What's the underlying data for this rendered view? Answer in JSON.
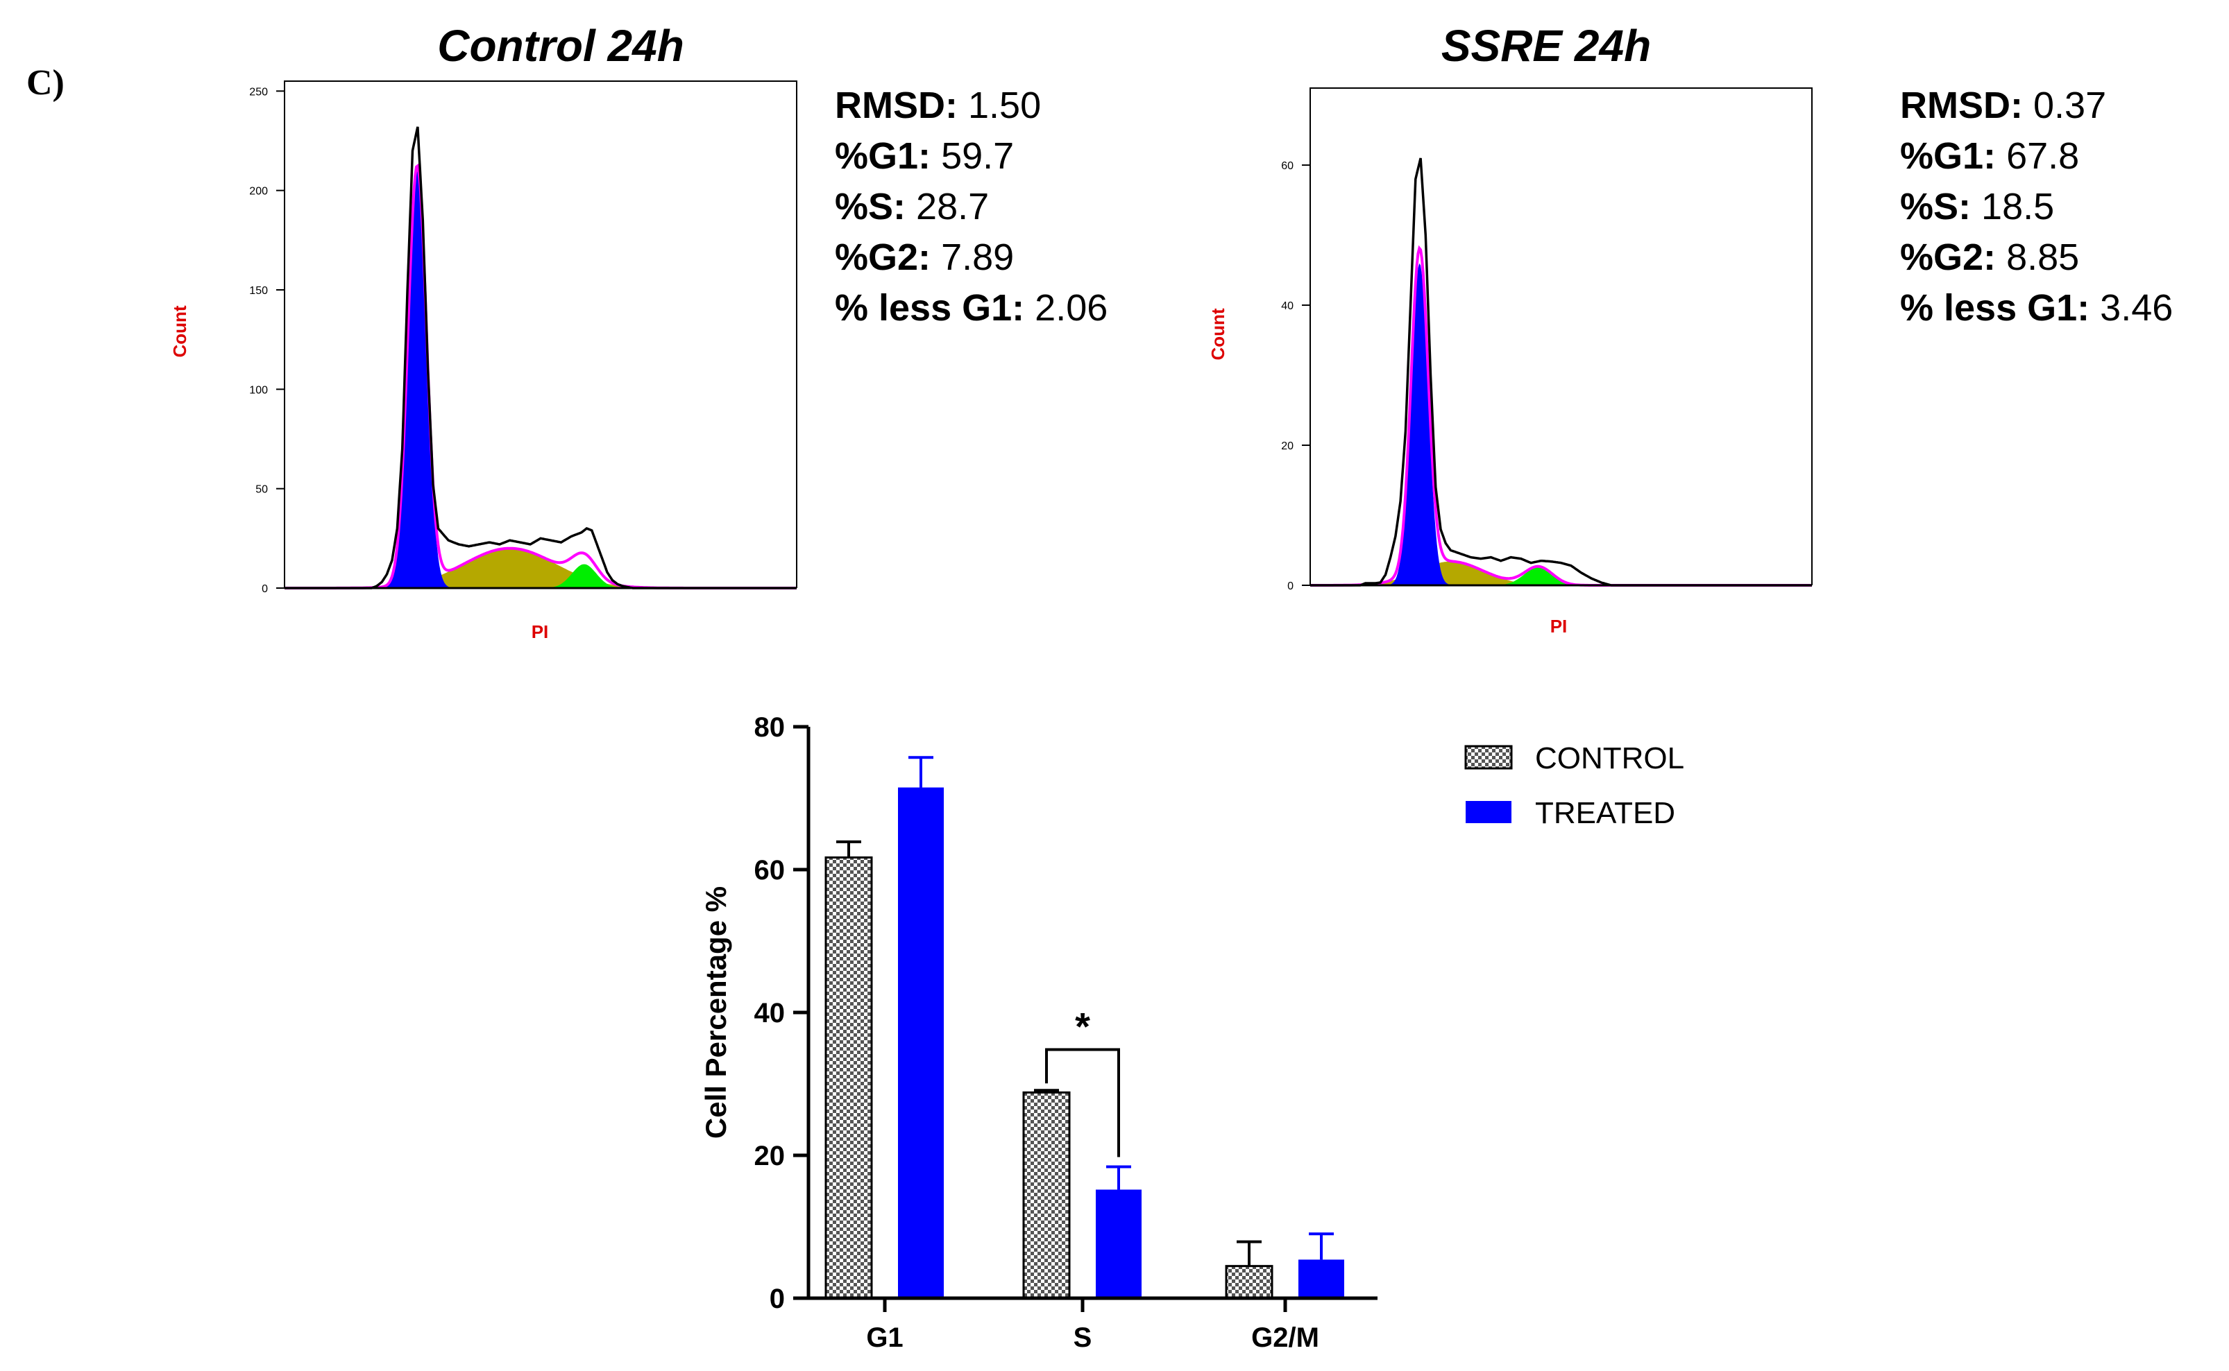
{
  "figure": {
    "panel_label": "C)"
  },
  "colors": {
    "g1_fill": "#0000ff",
    "s_fill": "#b5a800",
    "g2_fill": "#00ee00",
    "fit_line": "#ff00ff",
    "data_line": "#000000",
    "axis_label_red": "#dd0000",
    "treated": "#0000ff",
    "control_bar": "#8c8c8c"
  },
  "chart_data": [
    {
      "type": "area",
      "id": "hist_control",
      "title": "Control 24h",
      "xlabel": "PI",
      "ylabel": "Count",
      "ylim": [
        0,
        255
      ],
      "yticks": [
        "0",
        "50",
        "100",
        "150",
        "200",
        "250"
      ],
      "ytick_values": [
        0,
        50,
        100,
        150,
        200,
        250
      ],
      "xlim": [
        0,
        100
      ],
      "profile": {
        "x": [
          0,
          17,
          18,
          19,
          20,
          21,
          22,
          23,
          24,
          25,
          26,
          27,
          28,
          29,
          30,
          32,
          34,
          36,
          38,
          40,
          42,
          44,
          46,
          48,
          50,
          52,
          54,
          56,
          57,
          58,
          59,
          60,
          61,
          62,
          63,
          64,
          65,
          66,
          67,
          68,
          70,
          100
        ],
        "y": [
          0,
          0,
          1,
          3,
          7,
          14,
          30,
          70,
          150,
          220,
          232,
          185,
          110,
          52,
          30,
          24,
          22,
          21,
          22,
          23,
          22,
          24,
          23,
          22,
          25,
          24,
          23,
          26,
          27,
          28,
          30,
          29,
          22,
          15,
          8,
          4,
          2,
          1,
          0.5,
          0,
          0,
          0
        ]
      },
      "stats": [
        {
          "key": "RMSD:",
          "value": "1.50"
        },
        {
          "key": "%G1:",
          "value": "59.7"
        },
        {
          "key": "%S:",
          "value": "28.7"
        },
        {
          "key": "%G2:",
          "value": "7.89"
        },
        {
          "key": "% less G1:",
          "value": "2.06"
        }
      ]
    },
    {
      "type": "area",
      "id": "hist_ssre",
      "title": "SSRE 24h",
      "xlabel": "PI",
      "ylabel": "Count",
      "ylim": [
        0,
        71
      ],
      "yticks": [
        "0",
        "20",
        "40",
        "60"
      ],
      "ytick_values": [
        0,
        20,
        40,
        60
      ],
      "xlim": [
        0,
        100
      ],
      "profile": {
        "x": [
          0,
          10,
          11,
          12,
          13,
          14,
          15,
          16,
          17,
          18,
          19,
          20,
          21,
          22,
          23,
          24,
          25,
          26,
          27,
          28,
          30,
          32,
          34,
          36,
          38,
          40,
          42,
          44,
          46,
          48,
          50,
          52,
          54,
          56,
          58,
          60,
          100
        ],
        "y": [
          0,
          0,
          0.3,
          0.3,
          0.3,
          0.4,
          1.5,
          4,
          7,
          12,
          22,
          40,
          58,
          61,
          50,
          30,
          14,
          8,
          6,
          5,
          4.5,
          4,
          3.8,
          4,
          3.5,
          4,
          3.8,
          3.2,
          3.5,
          3.4,
          3.2,
          2.8,
          1.8,
          1,
          0.4,
          0,
          0
        ]
      },
      "stats": [
        {
          "key": "RMSD:",
          "value": "0.37"
        },
        {
          "key": "%G1:",
          "value": "67.8"
        },
        {
          "key": "%S:",
          "value": "18.5"
        },
        {
          "key": "%G2:",
          "value": "8.85"
        },
        {
          "key": "% less G1:",
          "value": "3.46"
        }
      ]
    },
    {
      "type": "bar",
      "id": "bar_cellcycle",
      "title": "",
      "xlabel": "",
      "ylabel": "Cell Percentage %",
      "ylim": [
        0,
        80
      ],
      "yticks": [
        "0",
        "20",
        "40",
        "60",
        "80"
      ],
      "ytick_values": [
        0,
        20,
        40,
        60,
        80
      ],
      "categories": [
        "G1",
        "S",
        "G2/M"
      ],
      "series": [
        {
          "name": "CONTROL",
          "values": [
            61.7,
            28.8,
            4.5
          ],
          "errors": [
            2.2,
            0.3,
            3.4
          ]
        },
        {
          "name": "TREATED",
          "values": [
            71.5,
            15.2,
            5.4
          ],
          "errors": [
            4.2,
            3.2,
            3.6
          ]
        }
      ],
      "annotations": [
        {
          "text": "*",
          "between": "S",
          "type": "significance_bracket"
        }
      ]
    }
  ]
}
